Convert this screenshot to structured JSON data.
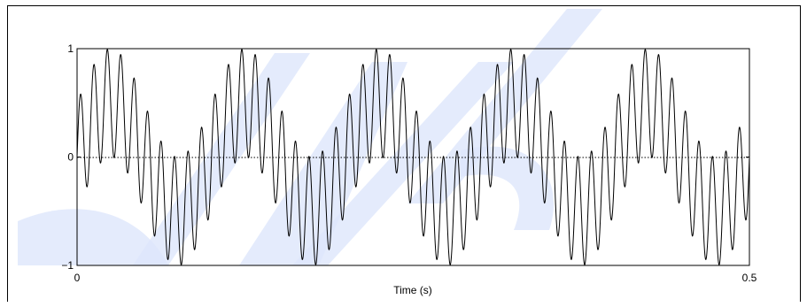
{
  "chart_data": {
    "type": "line",
    "title": "",
    "xlabel": "Time (s)",
    "ylabel": "",
    "xlim": [
      0,
      0.5
    ],
    "ylim": [
      -1,
      1
    ],
    "x_ticks": [
      "0",
      "0.5"
    ],
    "y_ticks": [
      "1",
      "0",
      "−1"
    ],
    "grid": false,
    "zero_line": "dotted",
    "series": [
      {
        "formula": "y = 0.5*sin(2*pi*10*t) + 0.5*sin(2*pi*100*t)",
        "components": [
          {
            "frequency_hz": 10,
            "amplitude": 0.5
          },
          {
            "frequency_hz": 100,
            "amplitude": 0.5
          }
        ],
        "color": "#000000"
      }
    ]
  },
  "watermark": {
    "color": "#dde6fb"
  }
}
